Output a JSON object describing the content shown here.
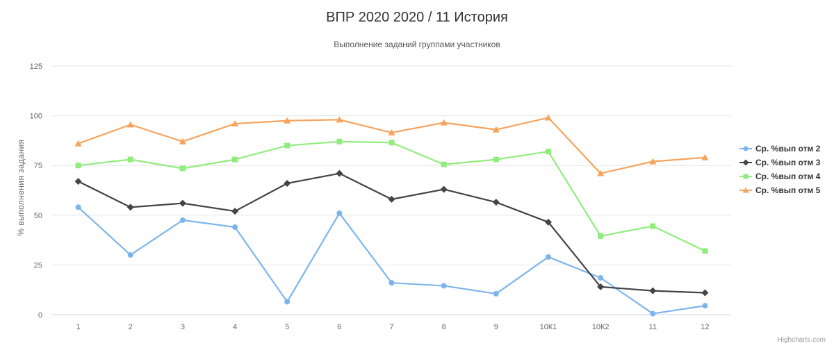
{
  "chart_data": {
    "type": "line",
    "title": "ВПР 2020 2020 / 11 История",
    "subtitle": "Выполнение заданий группами участников",
    "ylabel": "% выполнения задания",
    "xlabel": "",
    "ylim": [
      0,
      125
    ],
    "yticks": [
      "0",
      "25",
      "50",
      "75",
      "100",
      "125"
    ],
    "ytick_values": [
      0,
      25,
      50,
      75,
      100,
      125
    ],
    "categories": [
      "1",
      "2",
      "3",
      "4",
      "5",
      "6",
      "7",
      "8",
      "9",
      "10К1",
      "10К2",
      "11",
      "12"
    ],
    "grid": true,
    "legend_position": "right",
    "series": [
      {
        "name": "Ср. %вып отм 2",
        "color": "#7cb5ec",
        "marker": "circle",
        "values": [
          54,
          30,
          47.5,
          44,
          6.5,
          51,
          16,
          14.5,
          10.5,
          29,
          18.5,
          0.5,
          4.5
        ]
      },
      {
        "name": "Ср. %вып отм 3",
        "color": "#434348",
        "marker": "diamond",
        "values": [
          67,
          54,
          56,
          52,
          66,
          71,
          58,
          63,
          56.5,
          46.5,
          14,
          12,
          11
        ]
      },
      {
        "name": "Ср. %вып отм 4",
        "color": "#90ed7d",
        "marker": "square",
        "values": [
          75,
          78,
          73.5,
          78,
          85,
          87,
          86.5,
          75.5,
          78,
          82,
          39.5,
          44.5,
          32
        ]
      },
      {
        "name": "Ср. %вып отм 5",
        "color": "#f7a35c",
        "marker": "triangle",
        "values": [
          86,
          95.5,
          87,
          96,
          97.5,
          98,
          91.5,
          96.5,
          93,
          99,
          71,
          77,
          79
        ]
      }
    ]
  },
  "credits": "Highcharts.com"
}
